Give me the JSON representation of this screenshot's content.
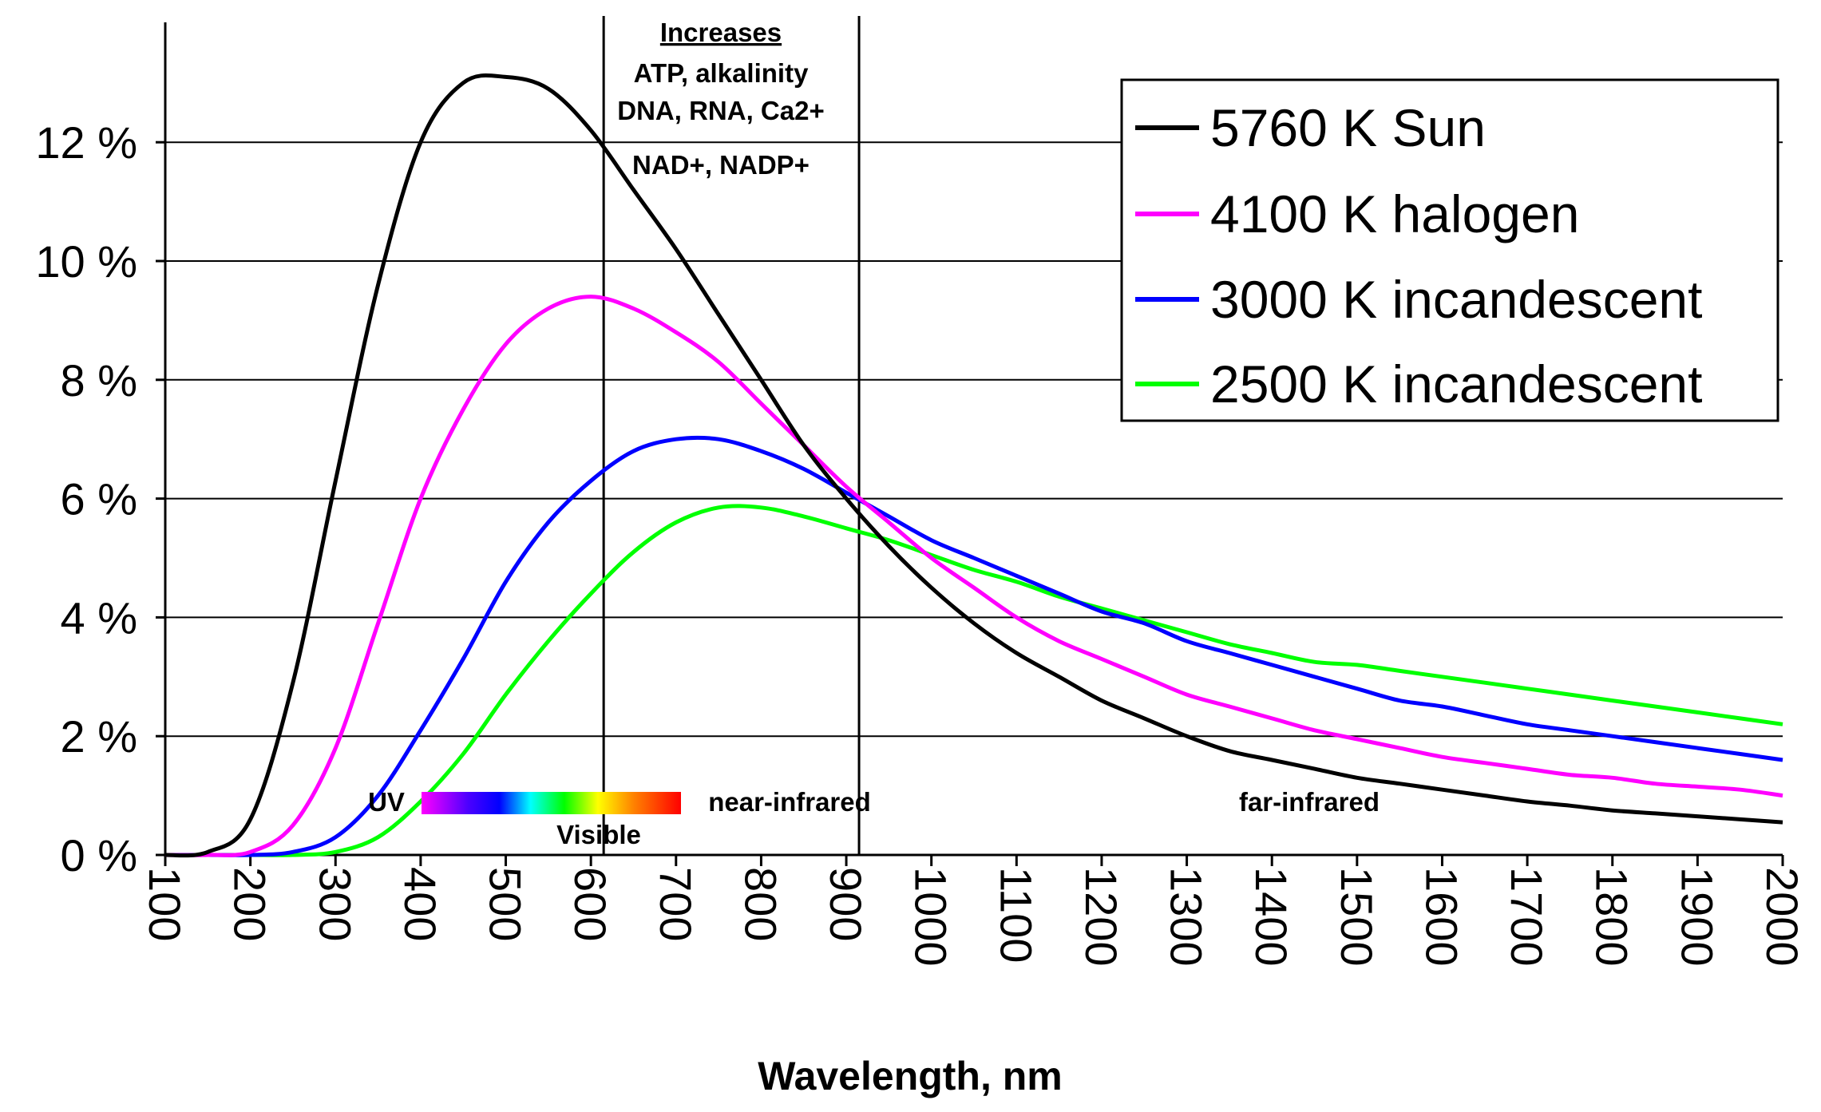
{
  "chart_data": {
    "type": "line",
    "title": "",
    "xlabel": "Wavelength, nm",
    "ylabel": "",
    "xlim": [
      100,
      2000
    ],
    "ylim": [
      0,
      14
    ],
    "x_ticks": [
      100,
      200,
      300,
      400,
      500,
      600,
      700,
      800,
      900,
      1000,
      1100,
      1200,
      1300,
      1400,
      1500,
      1600,
      1700,
      1800,
      1900,
      2000
    ],
    "x_tick_labels": [
      "100",
      "200",
      "300",
      "400",
      "500",
      "600",
      "700",
      "800",
      "900",
      "1000",
      "1100",
      "1200",
      "1300",
      "1400",
      "1500",
      "1600",
      "1700",
      "1800",
      "1900",
      "2000"
    ],
    "y_ticks": [
      0,
      2,
      4,
      6,
      8,
      10,
      12
    ],
    "y_tick_labels": [
      "0 %",
      "2 %",
      "4 %",
      "6 %",
      "8 %",
      "10 %",
      "12 %"
    ],
    "grid": "horizontal",
    "legend_position": "top-right",
    "x": [
      100,
      150,
      200,
      250,
      300,
      350,
      400,
      450,
      500,
      550,
      600,
      650,
      700,
      750,
      800,
      850,
      900,
      950,
      1000,
      1050,
      1100,
      1150,
      1200,
      1250,
      1300,
      1350,
      1400,
      1450,
      1500,
      1550,
      1600,
      1650,
      1700,
      1750,
      1800,
      1850,
      1900,
      1950,
      2000
    ],
    "series": [
      {
        "name": "5760 K Sun",
        "color": "#000000",
        "values": [
          0,
          0.05,
          0.6,
          2.9,
          6.3,
          9.6,
          12.0,
          13.0,
          13.1,
          12.9,
          12.2,
          11.2,
          10.2,
          9.1,
          8.0,
          6.9,
          6.0,
          5.2,
          4.5,
          3.9,
          3.4,
          3.0,
          2.6,
          2.3,
          2.0,
          1.75,
          1.6,
          1.45,
          1.3,
          1.2,
          1.1,
          1.0,
          0.9,
          0.83,
          0.75,
          0.7,
          0.65,
          0.6,
          0.55
        ]
      },
      {
        "name": "4100 K halogen",
        "color": "#ff00ff",
        "values": [
          0,
          0,
          0.05,
          0.5,
          1.8,
          3.9,
          6.0,
          7.5,
          8.6,
          9.2,
          9.4,
          9.2,
          8.8,
          8.3,
          7.6,
          6.9,
          6.2,
          5.6,
          5.0,
          4.5,
          4.0,
          3.6,
          3.3,
          3.0,
          2.7,
          2.5,
          2.3,
          2.1,
          1.95,
          1.8,
          1.65,
          1.55,
          1.45,
          1.35,
          1.3,
          1.2,
          1.15,
          1.1,
          1.0
        ]
      },
      {
        "name": "3000 K incandescent",
        "color": "#0000ff",
        "values": [
          0,
          0,
          0,
          0.05,
          0.3,
          1.0,
          2.1,
          3.3,
          4.6,
          5.6,
          6.3,
          6.8,
          7.0,
          7.0,
          6.8,
          6.5,
          6.1,
          5.7,
          5.3,
          5.0,
          4.7,
          4.4,
          4.1,
          3.9,
          3.6,
          3.4,
          3.2,
          3.0,
          2.8,
          2.6,
          2.5,
          2.35,
          2.2,
          2.1,
          2.0,
          1.9,
          1.8,
          1.7,
          1.6
        ]
      },
      {
        "name": "2500 K incandescent",
        "color": "#00ff00",
        "values": [
          0,
          0,
          0,
          0,
          0.05,
          0.3,
          0.9,
          1.7,
          2.7,
          3.6,
          4.4,
          5.1,
          5.6,
          5.85,
          5.85,
          5.7,
          5.5,
          5.3,
          5.05,
          4.8,
          4.6,
          4.35,
          4.15,
          3.95,
          3.75,
          3.55,
          3.4,
          3.25,
          3.2,
          3.1,
          3.0,
          2.9,
          2.8,
          2.7,
          2.6,
          2.5,
          2.4,
          2.3,
          2.2
        ]
      }
    ],
    "vertical_markers": [
      615,
      915
    ],
    "annotations": {
      "increases_title": "Increases",
      "increases_line1": "ATP, alkalinity",
      "increases_line2": "DNA, RNA, Ca2+",
      "increases_line3": "NAD+, NADP+",
      "uv": "UV",
      "visible": "Visible",
      "near_infrared": "near-infrared",
      "far_infrared": "far-infrared"
    }
  }
}
